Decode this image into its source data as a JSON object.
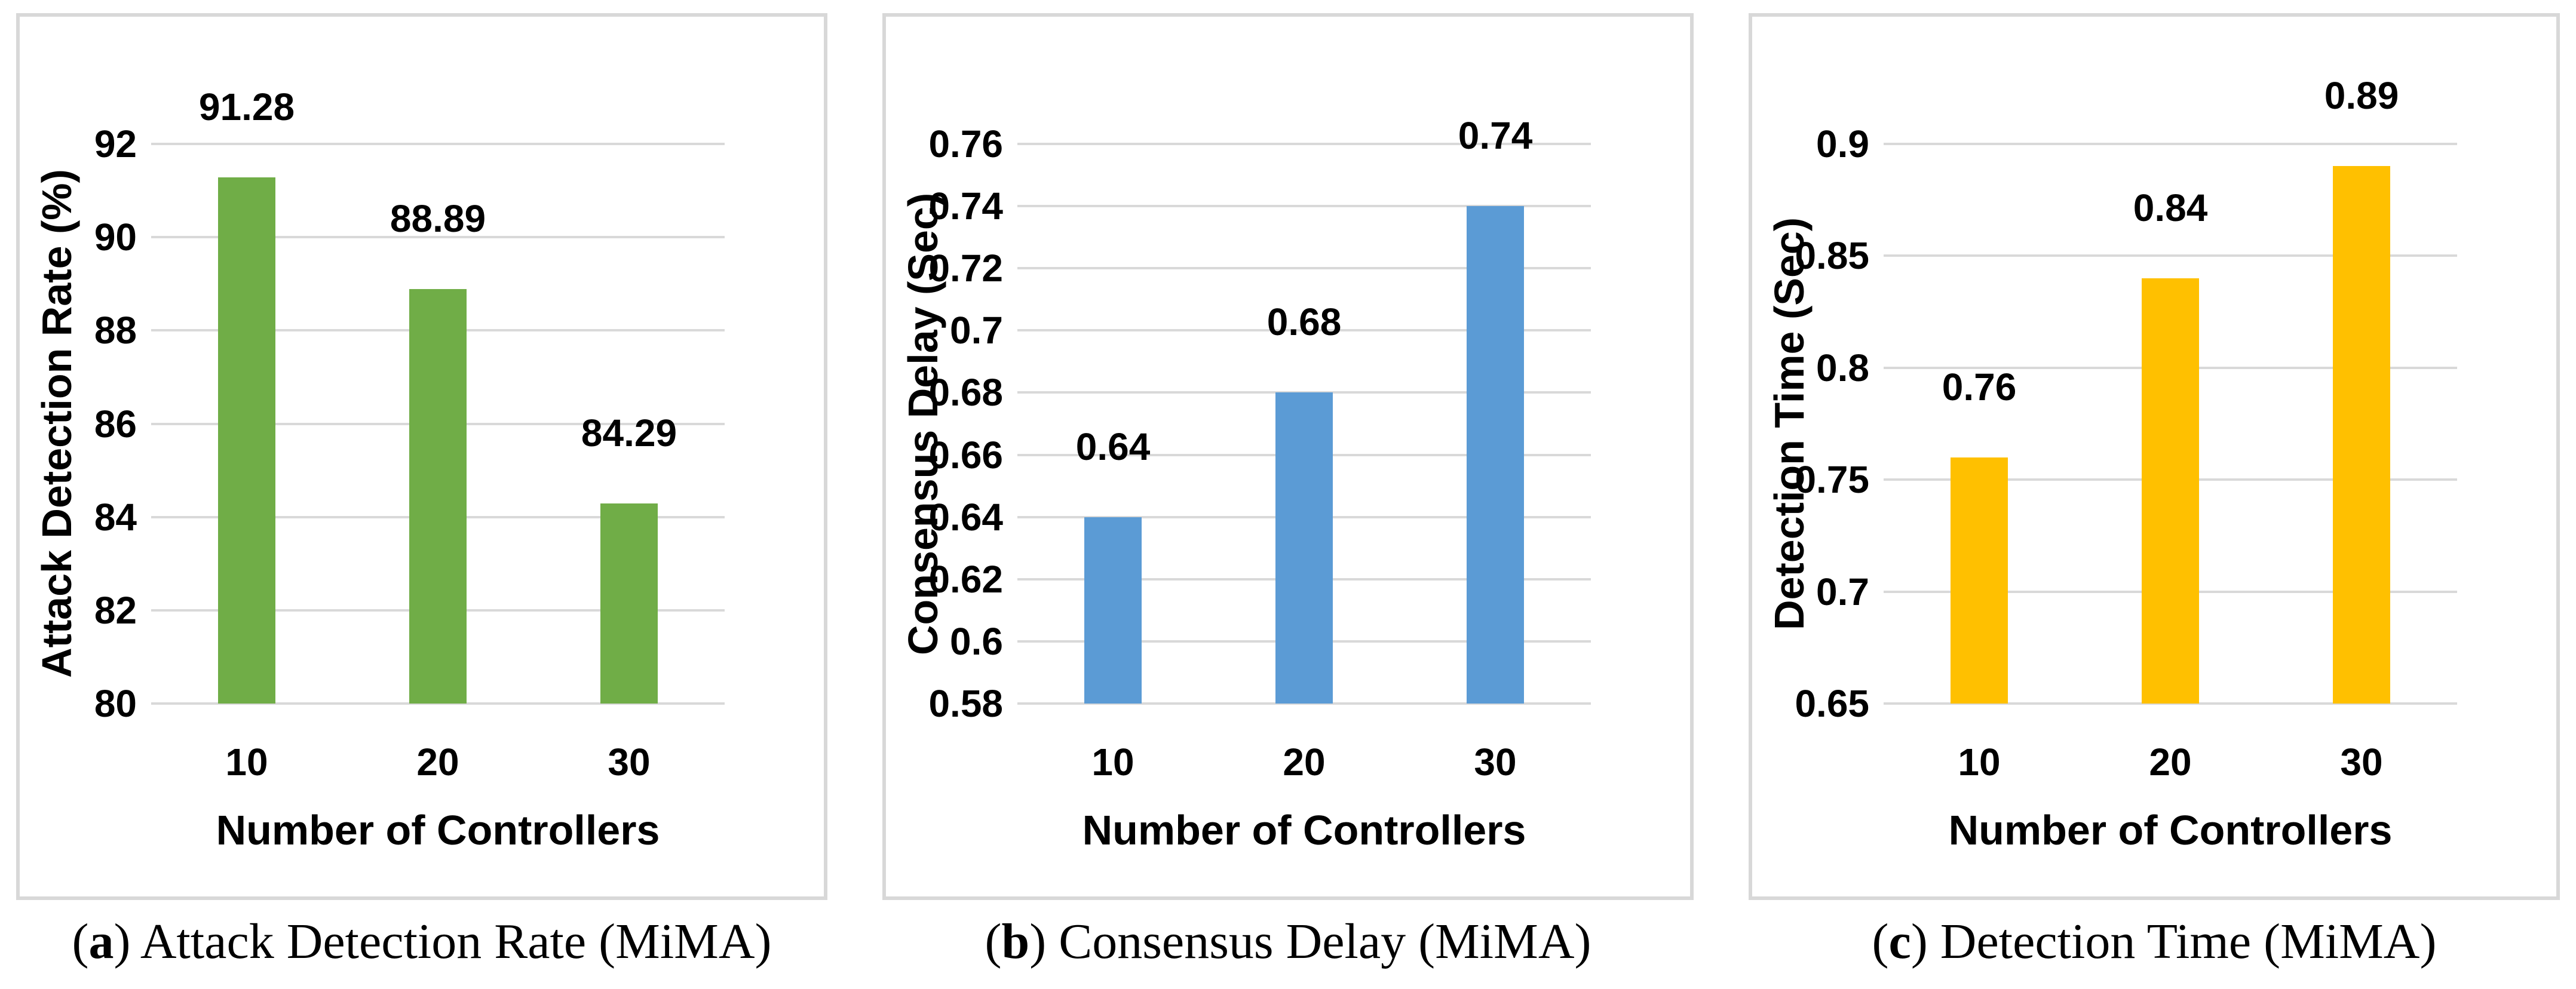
{
  "chart_data": [
    {
      "type": "bar",
      "caption_open": "(",
      "caption_letter": "a",
      "caption_close": ")",
      "caption_text": " Attack Detection Rate (MiMA)",
      "ylabel": "Attack Detection Rate (%)",
      "xlabel": "Number of Controllers",
      "categories": [
        "10",
        "20",
        "30"
      ],
      "values": [
        91.28,
        88.89,
        84.29
      ],
      "data_labels": [
        "91.28",
        "88.89",
        "84.29"
      ],
      "ylim": [
        80,
        92
      ],
      "y_ticks": [
        {
          "v": 92,
          "label": "92"
        },
        {
          "v": 90,
          "label": "90"
        },
        {
          "v": 88,
          "label": "88"
        },
        {
          "v": 86,
          "label": "86"
        },
        {
          "v": 84,
          "label": "84"
        },
        {
          "v": 82,
          "label": "82"
        },
        {
          "v": 80,
          "label": "80"
        }
      ],
      "bar_color": "#70AD47",
      "grid": "horizontal",
      "legend": null
    },
    {
      "type": "bar",
      "caption_open": "(",
      "caption_letter": "b",
      "caption_close": ")",
      "caption_text": " Consensus Delay (MiMA)",
      "ylabel": "Consensus Delay (Sec)",
      "xlabel": "Number of Controllers",
      "categories": [
        "10",
        "20",
        "30"
      ],
      "values": [
        0.64,
        0.68,
        0.74
      ],
      "data_labels": [
        "0.64",
        "0.68",
        "0.74"
      ],
      "ylim": [
        0.58,
        0.76
      ],
      "y_ticks": [
        {
          "v": 0.76,
          "label": "0.76"
        },
        {
          "v": 0.74,
          "label": "0.74"
        },
        {
          "v": 0.72,
          "label": "0.72"
        },
        {
          "v": 0.7,
          "label": "0.7"
        },
        {
          "v": 0.68,
          "label": "0.68"
        },
        {
          "v": 0.66,
          "label": "0.66"
        },
        {
          "v": 0.64,
          "label": "0.64"
        },
        {
          "v": 0.62,
          "label": "0.62"
        },
        {
          "v": 0.6,
          "label": "0.6"
        },
        {
          "v": 0.58,
          "label": "0.58"
        }
      ],
      "bar_color": "#5B9BD5",
      "grid": "horizontal",
      "legend": null
    },
    {
      "type": "bar",
      "caption_open": "(",
      "caption_letter": "c",
      "caption_close": ")",
      "caption_text": " Detection Time (MiMA)",
      "ylabel": "Detection Time (Sec)",
      "xlabel": "Number of Controllers",
      "categories": [
        "10",
        "20",
        "30"
      ],
      "values": [
        0.76,
        0.84,
        0.89
      ],
      "data_labels": [
        "0.76",
        "0.84",
        "0.89"
      ],
      "ylim": [
        0.65,
        0.9
      ],
      "y_ticks": [
        {
          "v": 0.9,
          "label": "0.9"
        },
        {
          "v": 0.85,
          "label": "0.85"
        },
        {
          "v": 0.8,
          "label": "0.8"
        },
        {
          "v": 0.75,
          "label": "0.75"
        },
        {
          "v": 0.7,
          "label": "0.7"
        },
        {
          "v": 0.65,
          "label": "0.65"
        }
      ],
      "bar_color": "#FFC000",
      "grid": "horizontal",
      "legend": null
    }
  ],
  "style": {
    "gridline_color": "#D9D9D9",
    "panel_border_color": "#D8D8D8",
    "text_color": "#000000"
  }
}
